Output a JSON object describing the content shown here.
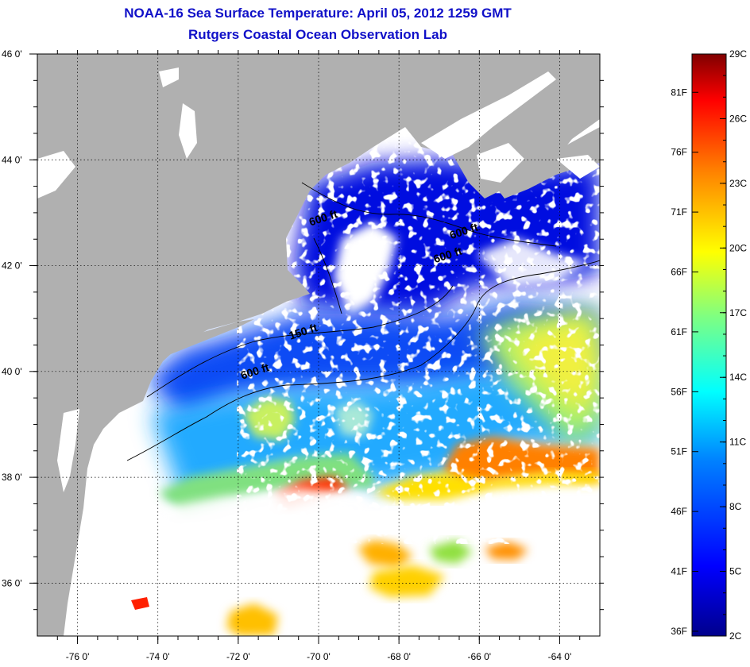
{
  "header": {
    "title": "NOAA-16 Sea Surface Temperature:  April 05, 2012 1259 GMT",
    "subtitle": "Rutgers Coastal Ocean Observation Lab"
  },
  "map": {
    "lon_range": [
      -77,
      -63
    ],
    "lat_range": [
      35,
      46
    ],
    "lon_ticks": [
      {
        "value": -76,
        "label": "-76 0'"
      },
      {
        "value": -74,
        "label": "-74 0'"
      },
      {
        "value": -72,
        "label": "-72 0'"
      },
      {
        "value": -70,
        "label": "-70 0'"
      },
      {
        "value": -68,
        "label": "-68 0'"
      },
      {
        "value": -66,
        "label": "-66 0'"
      },
      {
        "value": -64,
        "label": "-64 0'"
      }
    ],
    "lat_ticks": [
      {
        "value": 46,
        "label": "46 0'"
      },
      {
        "value": 44,
        "label": "44 0'"
      },
      {
        "value": 42,
        "label": "42 0'"
      },
      {
        "value": 40,
        "label": "40 0'"
      },
      {
        "value": 38,
        "label": "38 0'"
      },
      {
        "value": 36,
        "label": "36 0'"
      }
    ],
    "colors": {
      "land": "#b0b0b0",
      "cloud": "#ffffff",
      "frame": "#000000"
    },
    "contour_labels": [
      {
        "text": "600 ft",
        "lon": -71.9,
        "lat": 39.85
      },
      {
        "text": "150 ft",
        "lon": -70.7,
        "lat": 40.6
      },
      {
        "text": "600 ft",
        "lon": -70.2,
        "lat": 42.75
      },
      {
        "text": "600 ft",
        "lon": -66.7,
        "lat": 42.5
      },
      {
        "text": "600 ft",
        "lon": -67.1,
        "lat": 42.05
      }
    ]
  },
  "colorbar": {
    "range_c": [
      2,
      29
    ],
    "celsius_labels": [
      "29C",
      "26C",
      "23C",
      "20C",
      "17C",
      "14C",
      "11C",
      "8C",
      "5C",
      "2C"
    ],
    "fahrenheit_labels": [
      "81F",
      "76F",
      "71F",
      "66F",
      "61F",
      "56F",
      "51F",
      "46F",
      "41F",
      "36F"
    ],
    "fahrenheit_values": [
      81,
      76,
      71,
      66,
      61,
      56,
      51,
      46,
      41,
      36
    ],
    "gradient": [
      "#00008c",
      "#0000ff",
      "#0080ff",
      "#00ffff",
      "#80ff80",
      "#ffff00",
      "#ff8000",
      "#ff0000",
      "#800000"
    ]
  }
}
